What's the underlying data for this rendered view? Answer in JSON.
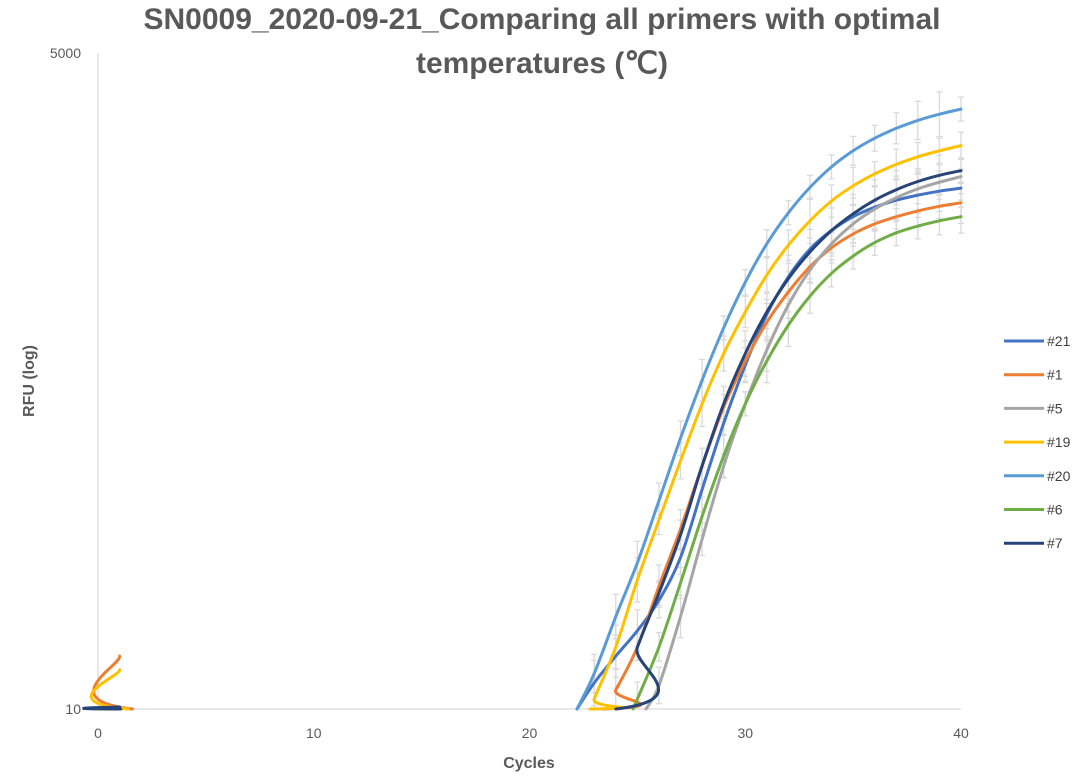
{
  "chart_data": {
    "type": "line",
    "title": "SN0009_2020-09-21_Comparing all primers with optimal temperatures (℃)",
    "title_lines": [
      "SN0009_2020-09-21_Comparing all primers with optimal",
      "temperatures (℃)"
    ],
    "xlabel": "Cycles",
    "ylabel": "RFU (log)",
    "xlim": [
      0,
      40
    ],
    "ylim": [
      10,
      5000
    ],
    "yscale": "log",
    "x_ticks": [
      0,
      10,
      20,
      30,
      40
    ],
    "y_ticks": [
      10,
      5000
    ],
    "grid": false,
    "legend": "right",
    "error_bars": true,
    "error_bar_color": "#d9d9d9",
    "series": [
      {
        "name": "#21",
        "color": "#4472C4",
        "x": [
          22.2,
          23,
          24,
          25,
          26,
          27,
          28,
          29,
          30,
          31,
          32,
          33,
          34,
          35,
          36,
          37,
          38,
          39,
          40
        ],
        "y": [
          10,
          12.8,
          16.5,
          21,
          28,
          42,
          80,
          150,
          260,
          420,
          600,
          780,
          930,
          1060,
          1160,
          1240,
          1300,
          1350,
          1390
        ]
      },
      {
        "name": "#1",
        "color": "#ED7D31",
        "x": [
          1.0,
          1.6,
          23.4,
          24,
          25,
          26,
          27,
          28,
          29,
          30,
          31,
          32,
          33,
          34,
          35,
          36,
          37,
          38,
          39,
          40
        ],
        "y": [
          16.5,
          10,
          10,
          12,
          18,
          32,
          55,
          100,
          175,
          270,
          390,
          520,
          660,
          790,
          900,
          990,
          1060,
          1120,
          1170,
          1210
        ]
      },
      {
        "name": "#5",
        "color": "#A5A5A5",
        "x": [
          25.4,
          26,
          27,
          28,
          29,
          30,
          31,
          32,
          33,
          34,
          35,
          36,
          37,
          38,
          39,
          40
        ],
        "y": [
          10,
          12.5,
          24,
          50,
          100,
          180,
          300,
          460,
          640,
          820,
          990,
          1140,
          1270,
          1380,
          1470,
          1550
        ]
      },
      {
        "name": "#19",
        "color": "#FFC000",
        "x": [
          1.0,
          1.4,
          22.8,
          23,
          24,
          25,
          26,
          27,
          28,
          29,
          30,
          31,
          32,
          33,
          34,
          35,
          36,
          37,
          38,
          39,
          40
        ],
        "y": [
          14.5,
          10,
          10,
          11,
          18,
          34,
          60,
          105,
          180,
          290,
          430,
          610,
          810,
          1020,
          1230,
          1420,
          1590,
          1740,
          1870,
          1980,
          2080
        ]
      },
      {
        "name": "#20",
        "color": "#5B9BD5",
        "x": [
          22.2,
          23,
          24,
          25,
          26,
          27,
          28,
          29,
          30,
          31,
          32,
          33,
          34,
          35,
          36,
          37,
          38,
          39,
          40
        ],
        "y": [
          10,
          14,
          24,
          40,
          72,
          130,
          225,
          370,
          570,
          820,
          1100,
          1400,
          1700,
          1980,
          2230,
          2450,
          2640,
          2800,
          2940
        ]
      },
      {
        "name": "#6",
        "color": "#70AD47",
        "x": [
          24.8,
          25,
          26,
          27,
          28,
          29,
          30,
          31,
          32,
          33,
          34,
          35,
          36,
          37,
          38,
          39,
          40
        ],
        "y": [
          10,
          11,
          18,
          33,
          62,
          110,
          180,
          270,
          380,
          500,
          620,
          730,
          830,
          910,
          970,
          1020,
          1060
        ]
      },
      {
        "name": "#7",
        "color": "#264478",
        "x": [
          1.0,
          1.05,
          24.0,
          25,
          26,
          27,
          28,
          29,
          30,
          31,
          32,
          33,
          34,
          35,
          36,
          37,
          38,
          39,
          40
        ],
        "y": [
          10.2,
          10,
          10,
          18,
          30,
          52,
          100,
          180,
          290,
          430,
          590,
          760,
          930,
          1090,
          1240,
          1370,
          1480,
          1570,
          1640
        ]
      }
    ]
  }
}
